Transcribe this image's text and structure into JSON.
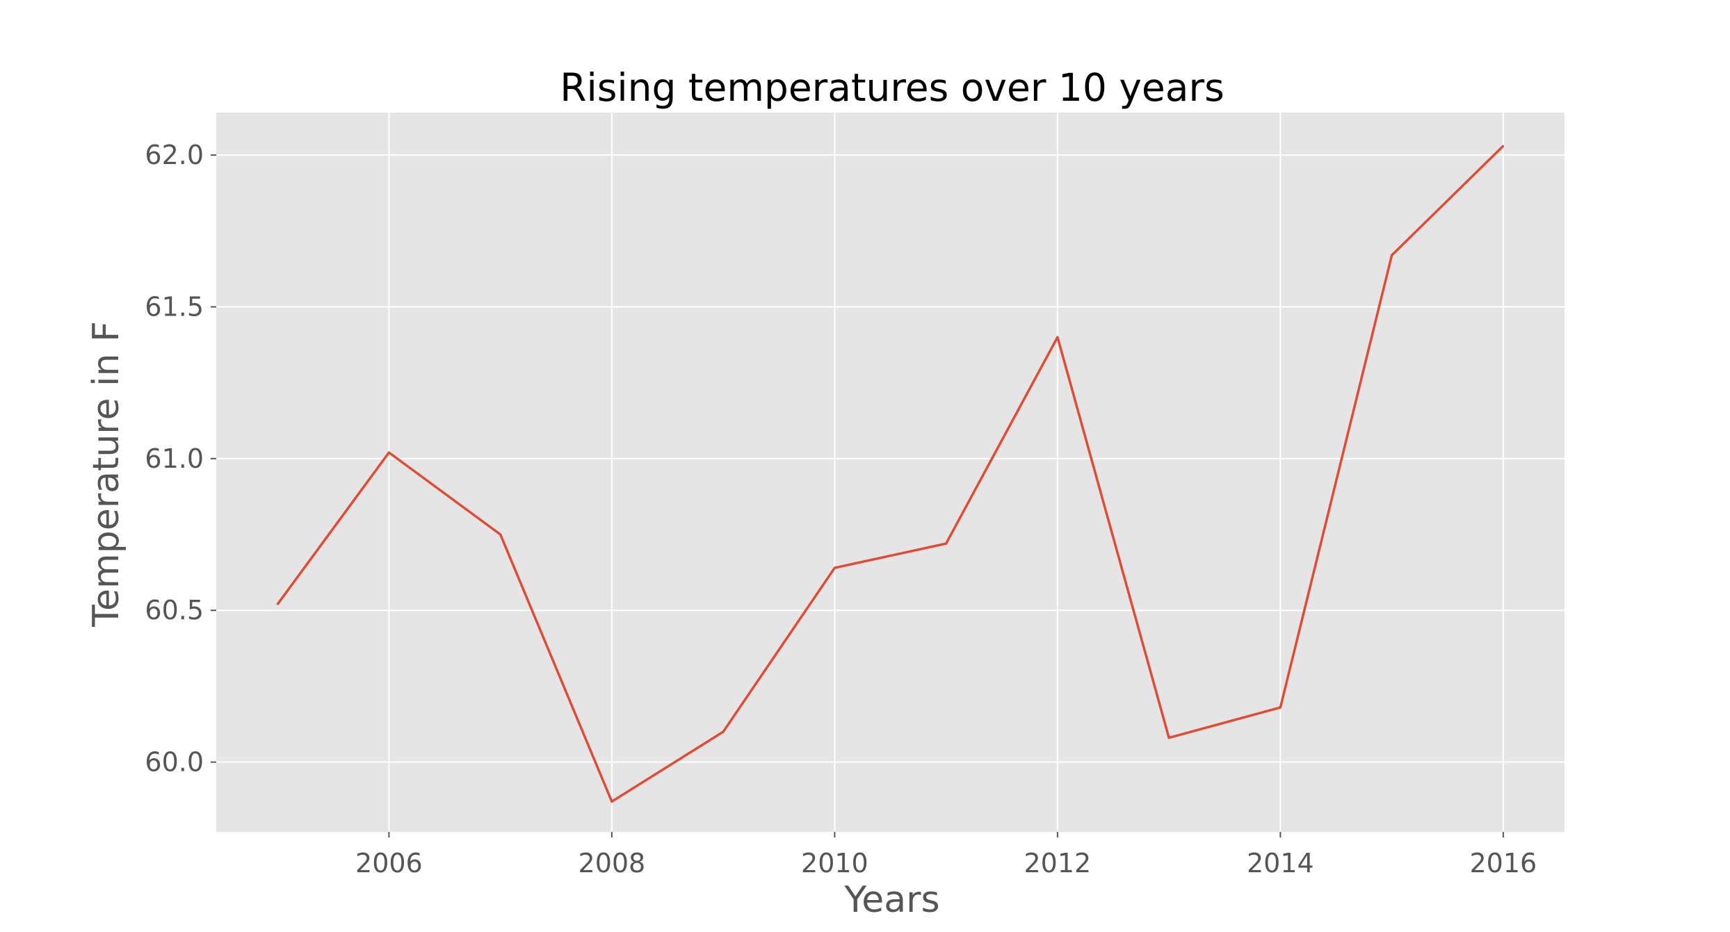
{
  "chart_data": {
    "type": "line",
    "title": "Rising temperatures over 10 years",
    "xlabel": "Years",
    "ylabel": "Temperature in F",
    "x": [
      2005,
      2006,
      2007,
      2008,
      2009,
      2010,
      2011,
      2012,
      2013,
      2014,
      2015,
      2016
    ],
    "series": [
      {
        "values": [
          60.52,
          61.02,
          60.75,
          59.87,
          60.1,
          60.64,
          60.72,
          61.4,
          60.08,
          60.18,
          61.67,
          62.03
        ],
        "color": "#e24a33"
      }
    ],
    "xlim": [
      2004.45,
      2016.55
    ],
    "ylim": [
      59.77,
      62.14
    ],
    "xticks": [
      2006,
      2008,
      2010,
      2012,
      2014,
      2016
    ],
    "xtick_labels": [
      "2006",
      "2008",
      "2010",
      "2012",
      "2014",
      "2016"
    ],
    "yticks": [
      60.0,
      60.5,
      61.0,
      61.5,
      62.0
    ],
    "ytick_labels": [
      "60.0",
      "60.5",
      "61.0",
      "61.5",
      "62.0"
    ],
    "grid": true,
    "style": "ggplot",
    "plot_background": "#e5e5e5"
  }
}
